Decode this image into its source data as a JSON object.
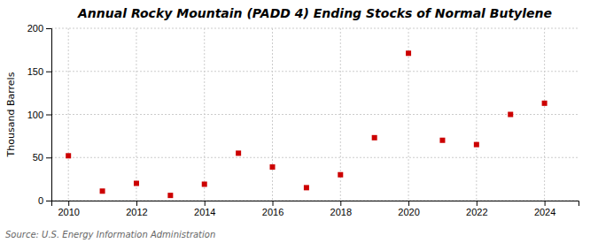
{
  "chart_data": {
    "type": "scatter",
    "title": "Annual Rocky Mountain (PADD 4) Ending Stocks of Normal Butylene",
    "ylabel": "Thousand Barrels",
    "source": "Source: U.S. Energy Information Administration",
    "x": [
      2010,
      2011,
      2012,
      2013,
      2014,
      2015,
      2016,
      2017,
      2018,
      2019,
      2020,
      2021,
      2022,
      2023,
      2024
    ],
    "values": [
      52,
      11,
      20,
      6,
      19,
      55,
      39,
      15,
      30,
      73,
      171,
      70,
      65,
      100,
      113
    ],
    "color": "#cc0000",
    "marker": "square",
    "grid": true,
    "xlim": [
      2009.5,
      2025
    ],
    "xticks": [
      2010,
      2012,
      2014,
      2016,
      2018,
      2020,
      2022,
      2024
    ],
    "ylim": [
      0,
      200
    ],
    "yticks": [
      0,
      50,
      100,
      150,
      200
    ]
  }
}
